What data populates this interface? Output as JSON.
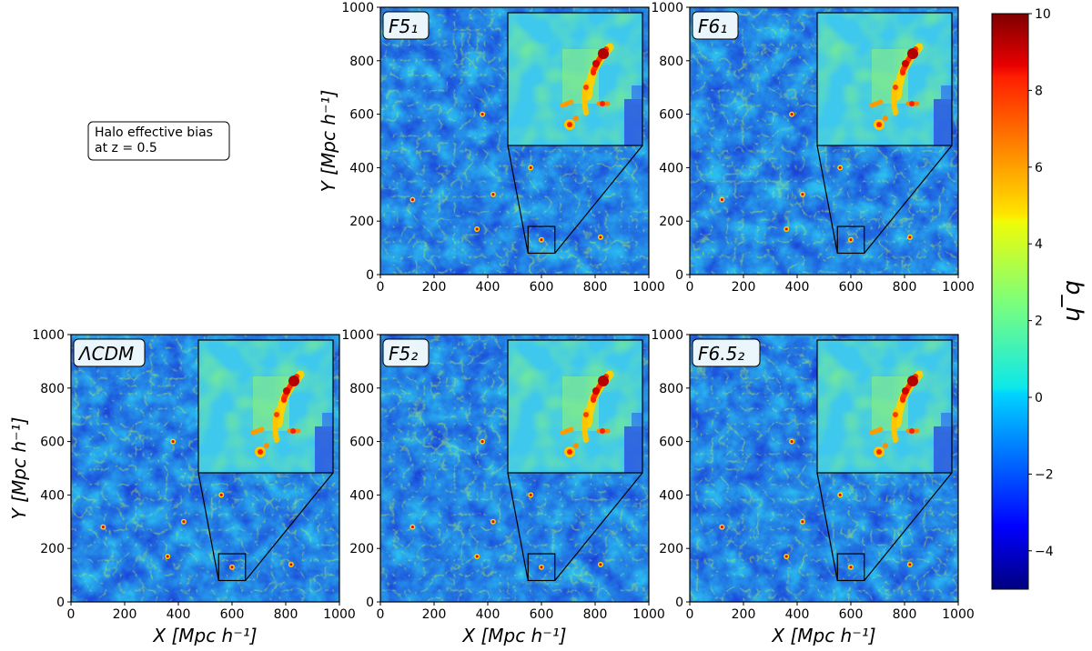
{
  "chart_data": {
    "type": "heatmap",
    "description_free": true,
    "annotation": {
      "line1": "Halo effective bias",
      "line2": " at z = 0.5"
    },
    "x_axis": {
      "label": "X [Mpc h⁻¹]",
      "range": [
        0,
        1000
      ],
      "ticks": [
        "0",
        "200",
        "400",
        "600",
        "800",
        "1000"
      ]
    },
    "y_axis": {
      "label": "Y [Mpc h⁻¹]",
      "range": [
        0,
        1000
      ],
      "ticks": [
        "0",
        "200",
        "400",
        "600",
        "800",
        "1000"
      ]
    },
    "colorbar": {
      "label": "b_h",
      "range": [
        -5,
        10
      ],
      "ticks": [
        "−4",
        "−2",
        "0",
        "2",
        "4",
        "6",
        "8",
        "10"
      ],
      "tick_values": [
        -4,
        -2,
        0,
        2,
        4,
        6,
        8,
        10
      ],
      "colormap": "jet"
    },
    "zoom_region": {
      "x_range": [
        550,
        650
      ],
      "y_range": [
        80,
        180
      ]
    },
    "panels": [
      {
        "title": "F5₁",
        "row": 0,
        "col": 1,
        "show_xlabel": false,
        "show_ylabel": true
      },
      {
        "title": "F6₁",
        "row": 0,
        "col": 2,
        "show_xlabel": false,
        "show_ylabel": false
      },
      {
        "title": "ΛCDM",
        "row": 1,
        "col": 0,
        "show_xlabel": true,
        "show_ylabel": true
      },
      {
        "title": "F5₂",
        "row": 1,
        "col": 1,
        "show_xlabel": true,
        "show_ylabel": false
      },
      {
        "title": "F6.5₂",
        "row": 1,
        "col": 2,
        "show_xlabel": true,
        "show_ylabel": false
      }
    ]
  }
}
